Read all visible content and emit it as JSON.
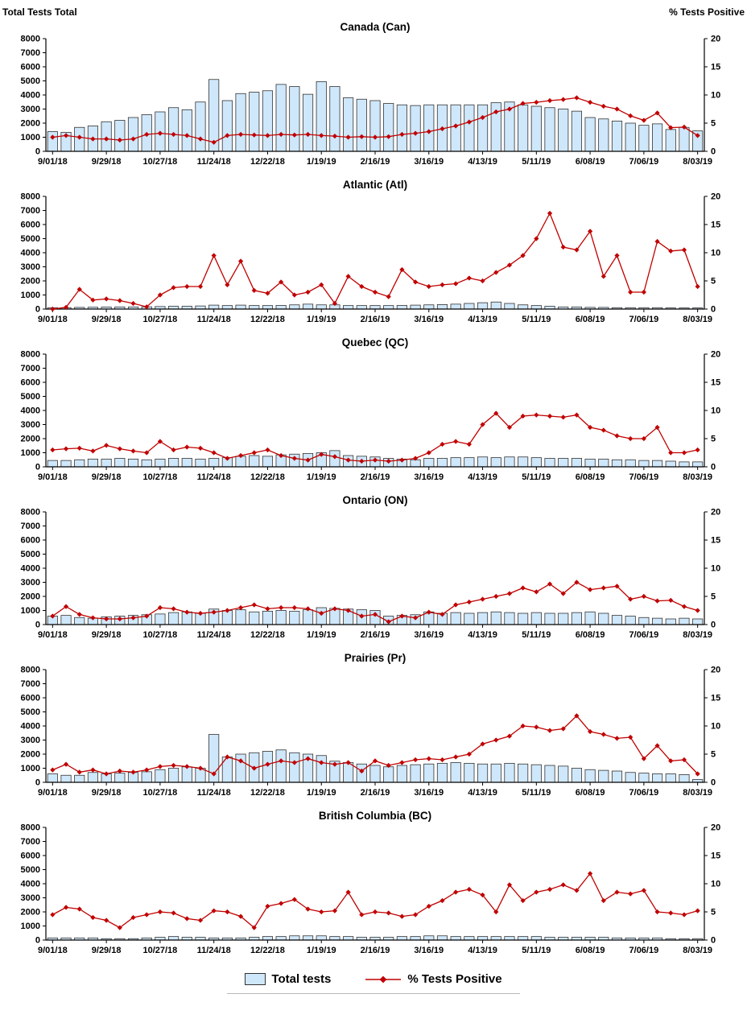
{
  "header": {
    "left_axis_title": "Total Tests Total",
    "right_axis_title": "% Tests Positive"
  },
  "legend": {
    "bars_label": "Total tests",
    "line_label": "% Tests Positive"
  },
  "colors": {
    "bar_fill": "#cfe7fa",
    "bar_stroke": "#333333",
    "line_color": "#c00000"
  },
  "chart_data": {
    "type": "combo-bar-line",
    "x": [
      "9/01/18",
      "9/08/18",
      "9/15/18",
      "9/22/18",
      "9/29/18",
      "10/06/18",
      "10/13/18",
      "10/20/18",
      "10/27/18",
      "11/03/18",
      "11/10/18",
      "11/17/18",
      "11/24/18",
      "12/01/18",
      "12/08/18",
      "12/15/18",
      "12/22/18",
      "12/29/18",
      "1/05/19",
      "1/12/19",
      "1/19/19",
      "1/26/19",
      "2/02/19",
      "2/09/19",
      "2/16/19",
      "2/23/19",
      "3/02/19",
      "3/09/19",
      "3/16/19",
      "3/23/19",
      "3/30/19",
      "4/06/19",
      "4/13/19",
      "4/20/19",
      "4/27/19",
      "5/04/19",
      "5/11/19",
      "5/18/19",
      "5/25/19",
      "6/01/19",
      "6/08/19",
      "6/15/19",
      "6/22/19",
      "6/29/19",
      "7/06/19",
      "7/13/19",
      "7/20/19",
      "7/27/19",
      "8/03/19"
    ],
    "x_tick_every": 4,
    "left_axis": {
      "title": "Total Tests",
      "range": [
        0,
        8000
      ],
      "tick_step": 1000
    },
    "right_axis": {
      "title": "% Tests Positive",
      "range": [
        0,
        20
      ],
      "tick_step": 5
    },
    "charts": [
      {
        "id": "can",
        "title": "Canada (Can)",
        "total_tests": [
          1400,
          1350,
          1700,
          1800,
          2100,
          2200,
          2400,
          2600,
          2800,
          3100,
          2950,
          3500,
          5100,
          3600,
          4100,
          4200,
          4300,
          4750,
          4600,
          4050,
          4950,
          4600,
          3800,
          3700,
          3600,
          3400,
          3300,
          3250,
          3300,
          3300,
          3300,
          3300,
          3300,
          3450,
          3500,
          3300,
          3200,
          3100,
          3000,
          2850,
          2400,
          2300,
          2150,
          2000,
          1850,
          1950,
          1550,
          1700,
          1450
        ],
        "pct_positive": [
          2.5,
          2.8,
          2.5,
          2.2,
          2.2,
          2.0,
          2.2,
          3.0,
          3.2,
          3.0,
          2.8,
          2.2,
          1.6,
          2.8,
          3.0,
          2.9,
          2.8,
          3.0,
          2.9,
          3.0,
          2.8,
          2.7,
          2.5,
          2.6,
          2.5,
          2.6,
          3.0,
          3.2,
          3.5,
          4.0,
          4.5,
          5.2,
          6.0,
          7.0,
          7.5,
          8.5,
          8.7,
          9.0,
          9.2,
          9.5,
          8.7,
          8.0,
          7.5,
          6.3,
          5.5,
          6.8,
          4.2,
          4.3,
          2.8
        ]
      },
      {
        "id": "atl",
        "title": "Atlantic (Atl)",
        "total_tests": [
          100,
          100,
          120,
          130,
          140,
          150,
          150,
          160,
          180,
          200,
          200,
          220,
          280,
          250,
          280,
          250,
          250,
          260,
          300,
          350,
          300,
          300,
          250,
          250,
          250,
          250,
          260,
          280,
          300,
          320,
          350,
          400,
          450,
          500,
          400,
          300,
          250,
          200,
          150,
          150,
          120,
          120,
          100,
          100,
          100,
          100,
          80,
          80,
          80
        ],
        "pct_positive": [
          0,
          0.3,
          3.5,
          1.6,
          1.8,
          1.5,
          1.0,
          0.4,
          2.5,
          3.8,
          4.0,
          4.0,
          9.5,
          4.3,
          8.5,
          3.3,
          2.8,
          4.8,
          2.5,
          3.0,
          4.3,
          1.0,
          5.8,
          4.0,
          3.0,
          2.2,
          7.0,
          4.8,
          4.0,
          4.3,
          4.5,
          5.5,
          5.0,
          6.5,
          7.8,
          9.5,
          12.5,
          17.0,
          11.0,
          10.5,
          13.8,
          5.8,
          9.5,
          3.0,
          3.0,
          12.0,
          10.3,
          10.5,
          4.0
        ]
      },
      {
        "id": "qc",
        "title": "Quebec (QC)",
        "total_tests": [
          450,
          450,
          500,
          550,
          550,
          600,
          550,
          500,
          550,
          600,
          600,
          550,
          600,
          650,
          750,
          800,
          750,
          850,
          900,
          950,
          1000,
          1150,
          800,
          750,
          700,
          600,
          550,
          500,
          600,
          600,
          650,
          650,
          700,
          650,
          700,
          700,
          650,
          600,
          600,
          600,
          550,
          550,
          500,
          500,
          450,
          450,
          400,
          350,
          350
        ],
        "pct_positive": [
          3.0,
          3.2,
          3.3,
          2.8,
          3.8,
          3.2,
          2.8,
          2.5,
          4.5,
          3.0,
          3.5,
          3.3,
          2.5,
          1.5,
          2.0,
          2.5,
          3.0,
          2.0,
          1.5,
          1.2,
          2.2,
          1.8,
          1.2,
          1.0,
          1.2,
          1.0,
          1.2,
          1.5,
          2.5,
          4.0,
          4.5,
          4.0,
          7.5,
          9.5,
          7.0,
          9.0,
          9.2,
          9.0,
          8.8,
          9.2,
          7.0,
          6.5,
          5.5,
          5.0,
          5.0,
          7.0,
          2.5,
          2.5,
          3.0
        ]
      },
      {
        "id": "on",
        "title": "Ontario (ON)",
        "total_tests": [
          600,
          650,
          500,
          450,
          550,
          600,
          650,
          700,
          750,
          850,
          900,
          800,
          1100,
          1000,
          1050,
          900,
          950,
          1000,
          950,
          1050,
          1200,
          1150,
          1100,
          1050,
          1000,
          600,
          650,
          700,
          900,
          800,
          850,
          800,
          850,
          900,
          850,
          800,
          850,
          800,
          800,
          850,
          900,
          800,
          650,
          600,
          500,
          450,
          400,
          450,
          400
        ],
        "pct_positive": [
          1.5,
          3.2,
          1.8,
          1.2,
          1.0,
          1.0,
          1.2,
          1.5,
          3.0,
          2.8,
          2.2,
          2.0,
          2.2,
          2.5,
          3.0,
          3.5,
          2.8,
          3.0,
          3.0,
          2.8,
          2.0,
          2.8,
          2.5,
          1.5,
          1.8,
          0.5,
          1.5,
          1.2,
          2.2,
          1.8,
          3.5,
          4.0,
          4.5,
          5.0,
          5.5,
          6.5,
          5.8,
          7.2,
          5.5,
          7.5,
          6.2,
          6.5,
          6.8,
          4.5,
          5.0,
          4.2,
          4.3,
          3.2,
          2.5
        ]
      },
      {
        "id": "pr",
        "title": "Prairies (Pr)",
        "total_tests": [
          600,
          500,
          500,
          700,
          600,
          650,
          700,
          750,
          900,
          1000,
          1100,
          1000,
          3400,
          1800,
          2000,
          2100,
          2200,
          2300,
          2100,
          2000,
          1900,
          1500,
          1400,
          1300,
          1200,
          1100,
          1200,
          1250,
          1300,
          1350,
          1400,
          1350,
          1300,
          1300,
          1350,
          1300,
          1250,
          1200,
          1150,
          1000,
          900,
          850,
          800,
          700,
          650,
          600,
          600,
          550,
          200
        ],
        "pct_positive": [
          2.2,
          3.2,
          1.8,
          2.2,
          1.5,
          2.0,
          1.8,
          2.2,
          2.8,
          3.0,
          2.8,
          2.5,
          1.5,
          4.5,
          3.8,
          2.5,
          3.2,
          3.8,
          3.5,
          4.2,
          3.5,
          3.2,
          3.5,
          2.0,
          3.8,
          3.0,
          3.5,
          4.0,
          4.2,
          4.0,
          4.5,
          5.0,
          6.8,
          7.5,
          8.2,
          10.0,
          9.8,
          9.2,
          9.5,
          11.8,
          9.0,
          8.5,
          7.8,
          8.0,
          4.2,
          6.5,
          3.8,
          4.0,
          1.5
        ]
      },
      {
        "id": "bc",
        "title": "British Columbia (BC)",
        "total_tests": [
          150,
          150,
          150,
          150,
          100,
          100,
          100,
          150,
          200,
          250,
          200,
          200,
          150,
          150,
          150,
          200,
          250,
          250,
          300,
          300,
          300,
          250,
          250,
          200,
          200,
          200,
          250,
          250,
          300,
          300,
          250,
          250,
          250,
          250,
          250,
          250,
          250,
          200,
          200,
          200,
          200,
          200,
          150,
          150,
          150,
          150,
          100,
          100,
          100
        ],
        "pct_positive": [
          4.5,
          5.8,
          5.5,
          4.0,
          3.5,
          2.2,
          4.0,
          4.5,
          5.0,
          4.8,
          3.8,
          3.5,
          5.2,
          5.0,
          4.2,
          2.2,
          6.0,
          6.5,
          7.2,
          5.5,
          5.0,
          5.2,
          8.5,
          4.5,
          5.0,
          4.8,
          4.2,
          4.5,
          6.0,
          7.0,
          8.5,
          9.0,
          8.0,
          5.0,
          9.8,
          7.0,
          8.5,
          9.0,
          9.8,
          8.8,
          11.8,
          7.0,
          8.5,
          8.2,
          8.8,
          5.0,
          4.8,
          4.5,
          5.2
        ]
      }
    ]
  }
}
